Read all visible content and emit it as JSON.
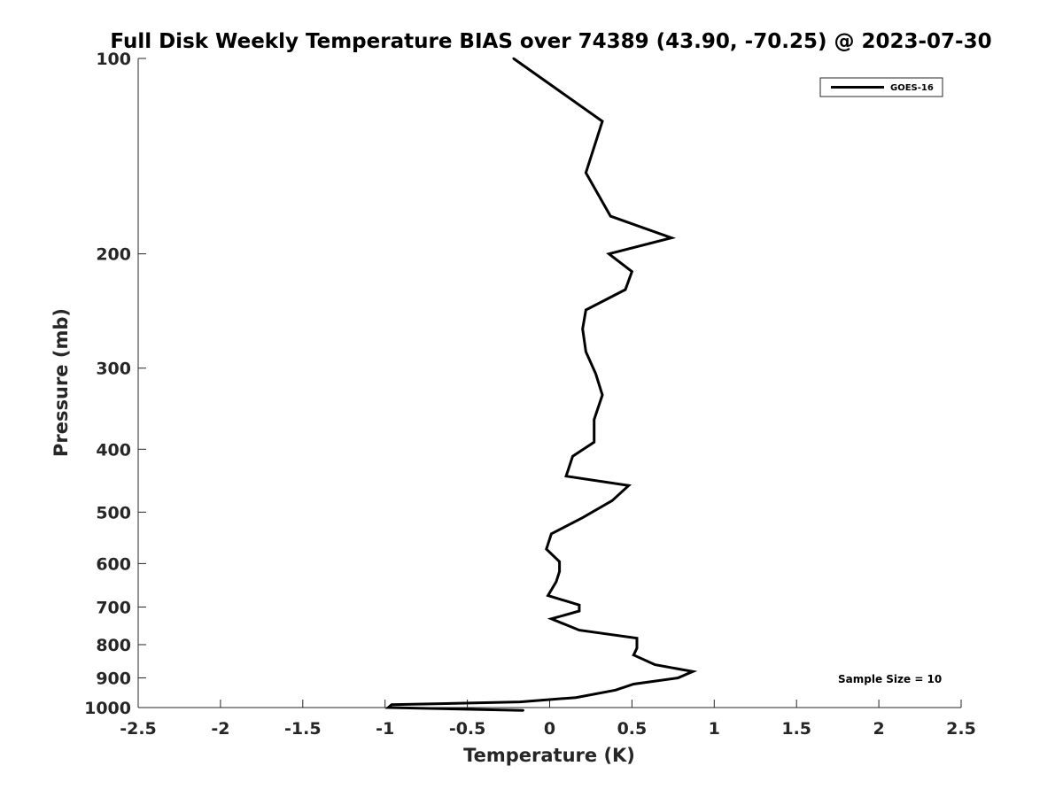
{
  "chart_data": {
    "type": "line",
    "title": "Full Disk Weekly Temperature BIAS over 74389 (43.90, -70.25) @ 2023-07-30",
    "xlabel": "Temperature (K)",
    "ylabel": "Pressure (mb)",
    "xlim": [
      -2.5,
      2.5
    ],
    "ylim": [
      1000,
      100
    ],
    "y_scale": "log",
    "y_reversed": true,
    "grid": false,
    "legend_position": "top-right",
    "x_ticks": [
      "-2.5",
      "-2",
      "-1.5",
      "-1",
      "-0.5",
      "0",
      "0.5",
      "1",
      "1.5",
      "2",
      "2.5"
    ],
    "y_ticks": [
      "100",
      "200",
      "300",
      "400",
      "500",
      "600",
      "700",
      "800",
      "900",
      "1000"
    ],
    "annotation": "Sample Size = 10",
    "series": [
      {
        "name": "GOES-16",
        "color": "#000000",
        "points": [
          [
            -0.22,
            100
          ],
          [
            0.32,
            125
          ],
          [
            0.22,
            150
          ],
          [
            0.37,
            175
          ],
          [
            0.74,
            189
          ],
          [
            0.36,
            200
          ],
          [
            0.5,
            213
          ],
          [
            0.46,
            227
          ],
          [
            0.22,
            244
          ],
          [
            0.2,
            261
          ],
          [
            0.22,
            283
          ],
          [
            0.28,
            306
          ],
          [
            0.32,
            330
          ],
          [
            0.27,
            360
          ],
          [
            0.27,
            390
          ],
          [
            0.14,
            410
          ],
          [
            0.1,
            440
          ],
          [
            0.48,
            455
          ],
          [
            0.38,
            480
          ],
          [
            0.2,
            510
          ],
          [
            0.01,
            540
          ],
          [
            -0.02,
            570
          ],
          [
            0.06,
            596
          ],
          [
            0.06,
            617
          ],
          [
            0.04,
            640
          ],
          [
            -0.01,
            672
          ],
          [
            0.18,
            695
          ],
          [
            0.18,
            710
          ],
          [
            0.01,
            730
          ],
          [
            0.18,
            760
          ],
          [
            0.53,
            782
          ],
          [
            0.53,
            810
          ],
          [
            0.51,
            830
          ],
          [
            0.64,
            859
          ],
          [
            0.87,
            880
          ],
          [
            0.78,
            900
          ],
          [
            0.51,
            920
          ],
          [
            0.4,
            940
          ],
          [
            0.16,
            965
          ],
          [
            -0.18,
            980
          ],
          [
            -0.96,
            990
          ],
          [
            -0.98,
            1000
          ],
          [
            -0.16,
            1010
          ]
        ]
      }
    ]
  }
}
